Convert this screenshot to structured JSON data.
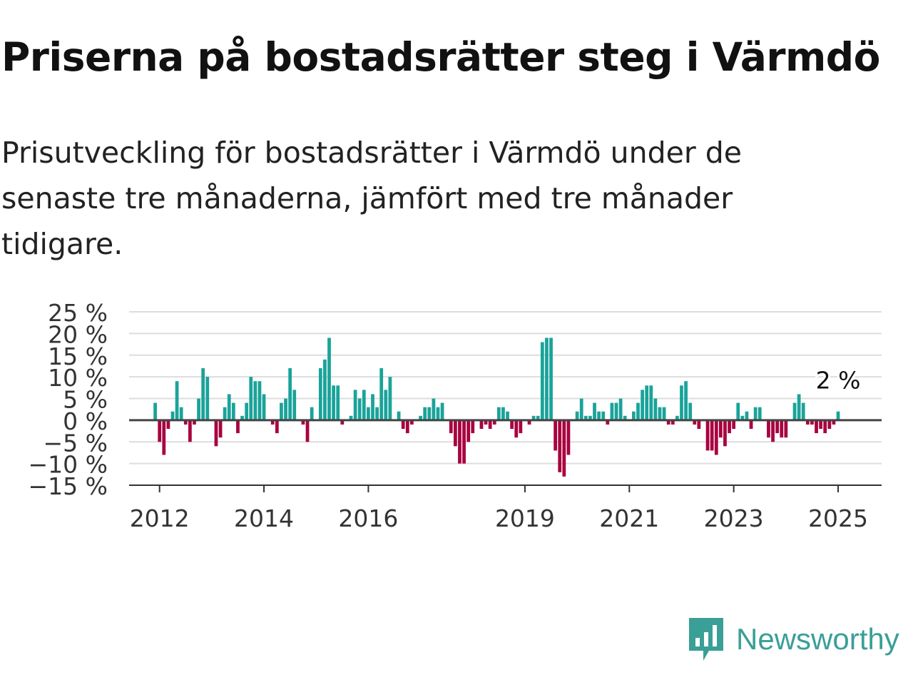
{
  "title": "Priserna på bostadsrätter steg i Värmdö",
  "subtitle": "Prisutveckling för bostadsrätter i Värmdö under de senaste tre månaderna, jämfört med tre månader tidigare.",
  "brand": {
    "name": "Newsworthy",
    "logo_icon": "bar-chart-speech-bubble-icon",
    "color": "#3a9f97"
  },
  "colors": {
    "positive": "#1aa39a",
    "negative": "#a8003f",
    "gridline": "#dddddd",
    "zero_line": "#444444"
  },
  "chart_data": {
    "type": "bar",
    "title": "",
    "xlabel": "",
    "ylabel": "",
    "unit": "%",
    "ylim": [
      -15,
      25
    ],
    "yticks": [
      -15,
      -10,
      -5,
      0,
      5,
      10,
      15,
      20,
      25
    ],
    "ytick_labels": [
      "−15 %",
      "−10 %",
      "−5 %",
      "0 %",
      "5 %",
      "10 %",
      "15 %",
      "20 %",
      "25 %"
    ],
    "grid": true,
    "x_start": "2011-06",
    "x_end": "2025-11",
    "xticks": [
      "2012-01",
      "2014-01",
      "2016-01",
      "2019-01",
      "2021-01",
      "2023-01",
      "2025-01"
    ],
    "xtick_labels": [
      "2012",
      "2014",
      "2016",
      "2019",
      "2021",
      "2023",
      "2025"
    ],
    "last_value_label": "2 %",
    "series": [
      {
        "start_month": "2011-12",
        "values": [
          4,
          -5,
          -8,
          -2,
          2,
          9,
          3,
          -1,
          -5,
          -1,
          5,
          12,
          10,
          0,
          -6,
          -4,
          3,
          6,
          4,
          -3,
          1,
          4,
          10,
          9,
          9,
          6,
          0,
          -1,
          -3,
          4,
          5,
          12,
          7,
          0,
          -1,
          -5,
          3,
          0,
          12,
          14,
          19,
          8,
          8,
          -1,
          0,
          1,
          7,
          5,
          7,
          3,
          6,
          3,
          12,
          7,
          10,
          0,
          2,
          -2,
          -3,
          -1,
          0,
          1,
          3,
          3,
          5,
          3,
          4,
          0,
          -3,
          -6,
          -10,
          -10,
          -5,
          -3,
          0,
          -2,
          -1,
          -2,
          -1,
          3,
          3,
          2,
          -2,
          -4,
          -3,
          0,
          -1,
          1,
          1,
          18,
          19,
          19,
          -7,
          -12,
          -13,
          -8,
          0,
          2,
          5,
          1,
          1,
          4,
          2,
          2,
          -1,
          4,
          4,
          5,
          1,
          0,
          2,
          4,
          7,
          8,
          8,
          5,
          3,
          3,
          -1,
          -1,
          1,
          8,
          9,
          4,
          -1,
          -2,
          0,
          -7,
          -7,
          -8,
          -4,
          -6,
          -3,
          -2,
          4,
          1,
          2,
          -2,
          3,
          3,
          0,
          -4,
          -5,
          -3,
          -4,
          -4,
          0,
          4,
          6,
          4,
          -1,
          -1,
          -3,
          -2,
          -3,
          -2,
          -1,
          2
        ]
      }
    ]
  }
}
